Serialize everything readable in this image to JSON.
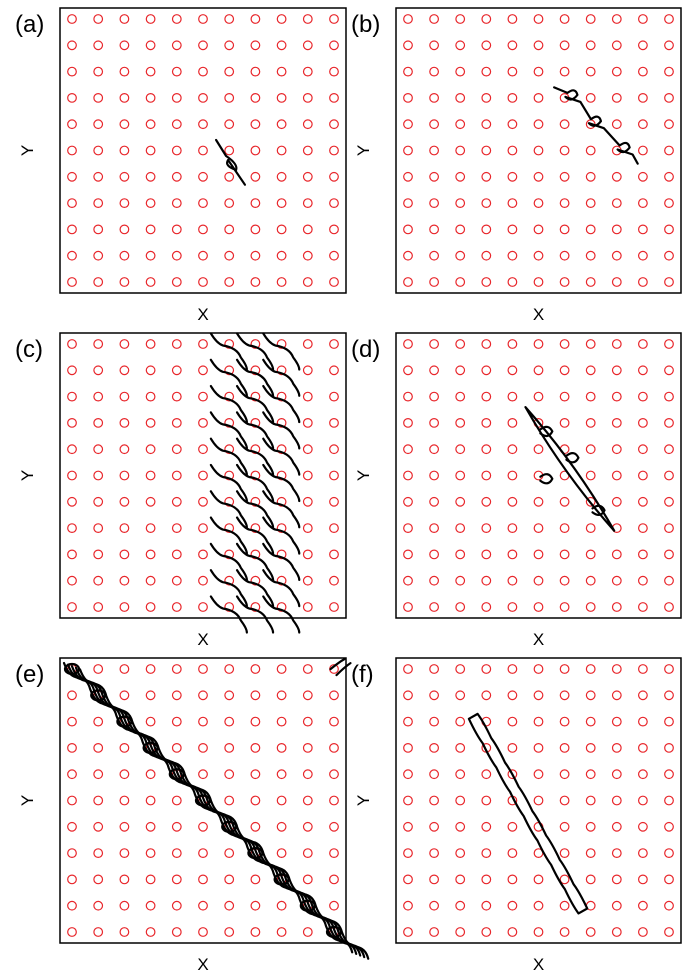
{
  "figure": {
    "colors": {
      "site": "#e8262b",
      "trace": "#000000",
      "frame": "#000000"
    },
    "grid": {
      "columns": 11,
      "rows": 11
    },
    "panels": [
      {
        "label": "(a)",
        "xlabel": "X",
        "ylabel": "Y"
      },
      {
        "label": "(b)",
        "xlabel": "X",
        "ylabel": "Y"
      },
      {
        "label": "(c)",
        "xlabel": "X",
        "ylabel": "Y"
      },
      {
        "label": "(d)",
        "xlabel": "X",
        "ylabel": "Y"
      },
      {
        "label": "(e)",
        "xlabel": "X",
        "ylabel": "Y"
      },
      {
        "label": "(f)",
        "xlabel": "X",
        "ylabel": "Y"
      }
    ]
  }
}
